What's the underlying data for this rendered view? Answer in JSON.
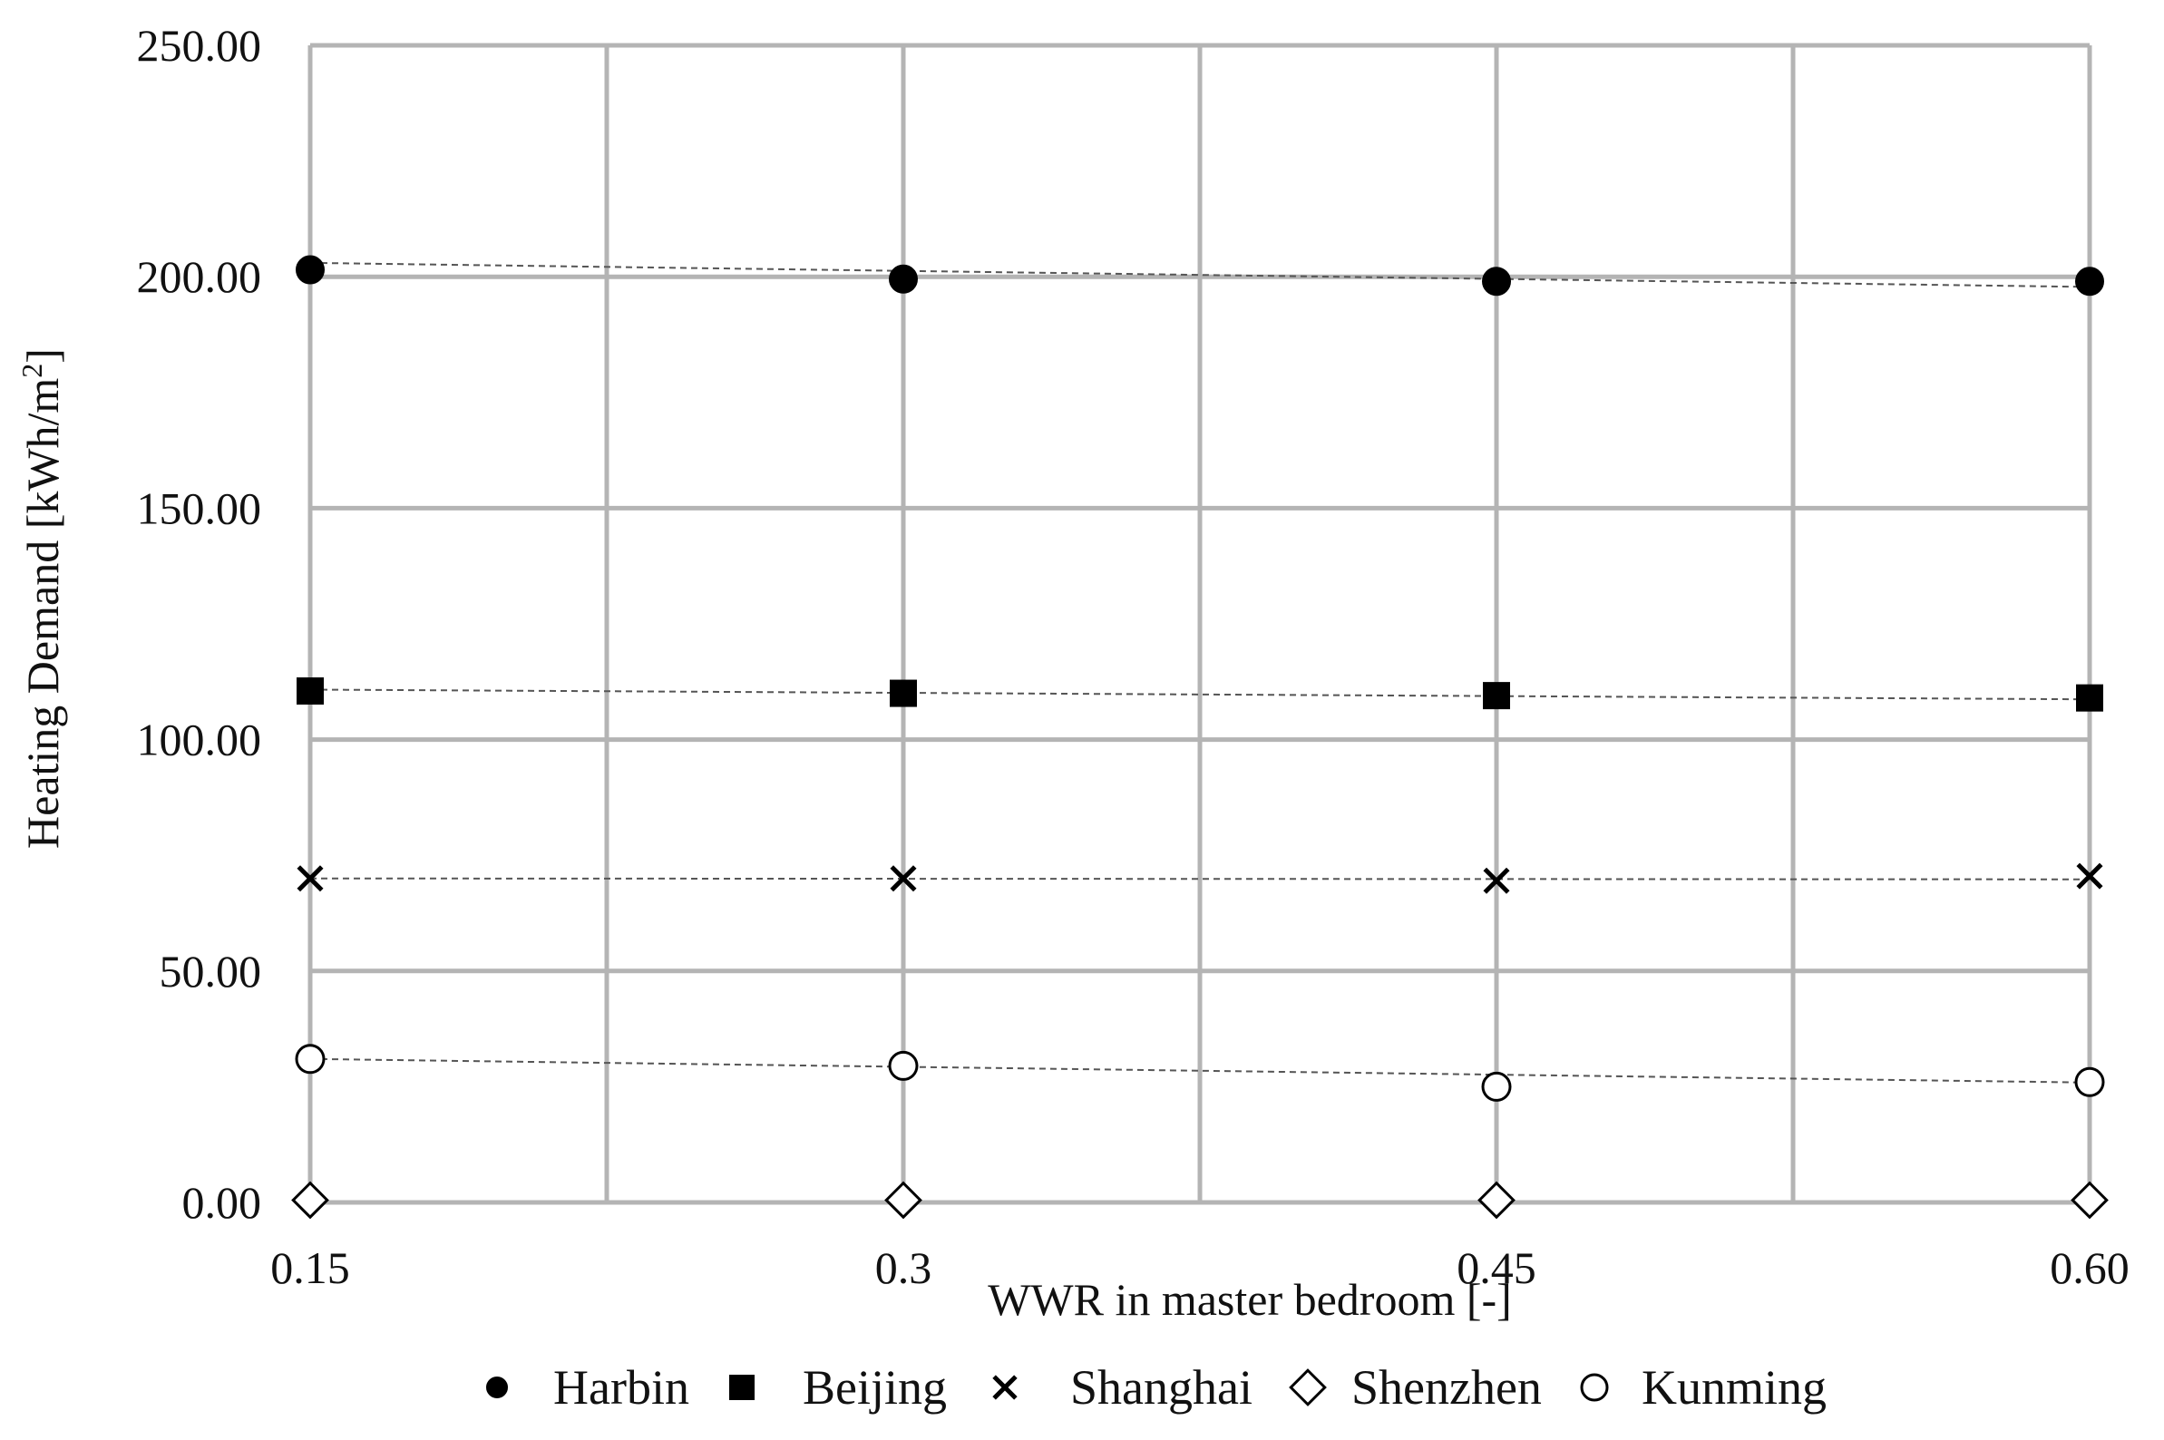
{
  "chart_data": {
    "type": "scatter",
    "x_categories": [
      "0.15",
      "0.3",
      "0.45",
      "0.60"
    ],
    "ylabel": "Heating Demand [kWh/m",
    "ylabel_superscript": "2",
    "ylabel_close": "]",
    "xlabel": "WWR in master bedroom [-]",
    "ylim": [
      0,
      250
    ],
    "yticks": [
      0,
      50,
      100,
      150,
      200,
      250
    ],
    "ytick_labels": [
      "0.00",
      "50.00",
      "100.00",
      "150.00",
      "200.00",
      "250.00"
    ],
    "grid": true,
    "legend_position": "bottom",
    "series": [
      {
        "name": "Harbin",
        "marker": "filled-circle",
        "values": [
          201.5,
          199.5,
          199.0,
          199.0
        ],
        "trend": [
          203.0,
          201.2,
          199.6,
          197.8
        ]
      },
      {
        "name": "Beijing",
        "marker": "filled-square",
        "values": [
          110.5,
          110.0,
          109.5,
          109.0
        ],
        "trend": [
          110.8,
          110.1,
          109.4,
          108.7
        ]
      },
      {
        "name": "Shanghai",
        "marker": "x",
        "values": [
          70.0,
          70.0,
          69.5,
          70.5
        ],
        "trend": [
          70.0,
          70.0,
          69.9,
          69.8
        ]
      },
      {
        "name": "Shenzhen",
        "marker": "open-diamond",
        "values": [
          0.5,
          0.5,
          0.5,
          0.5
        ]
      },
      {
        "name": "Kunming",
        "marker": "open-circle",
        "values": [
          31.0,
          29.5,
          25.0,
          26.0
        ],
        "trend": [
          31.0,
          29.3,
          27.6,
          25.9
        ]
      }
    ]
  }
}
